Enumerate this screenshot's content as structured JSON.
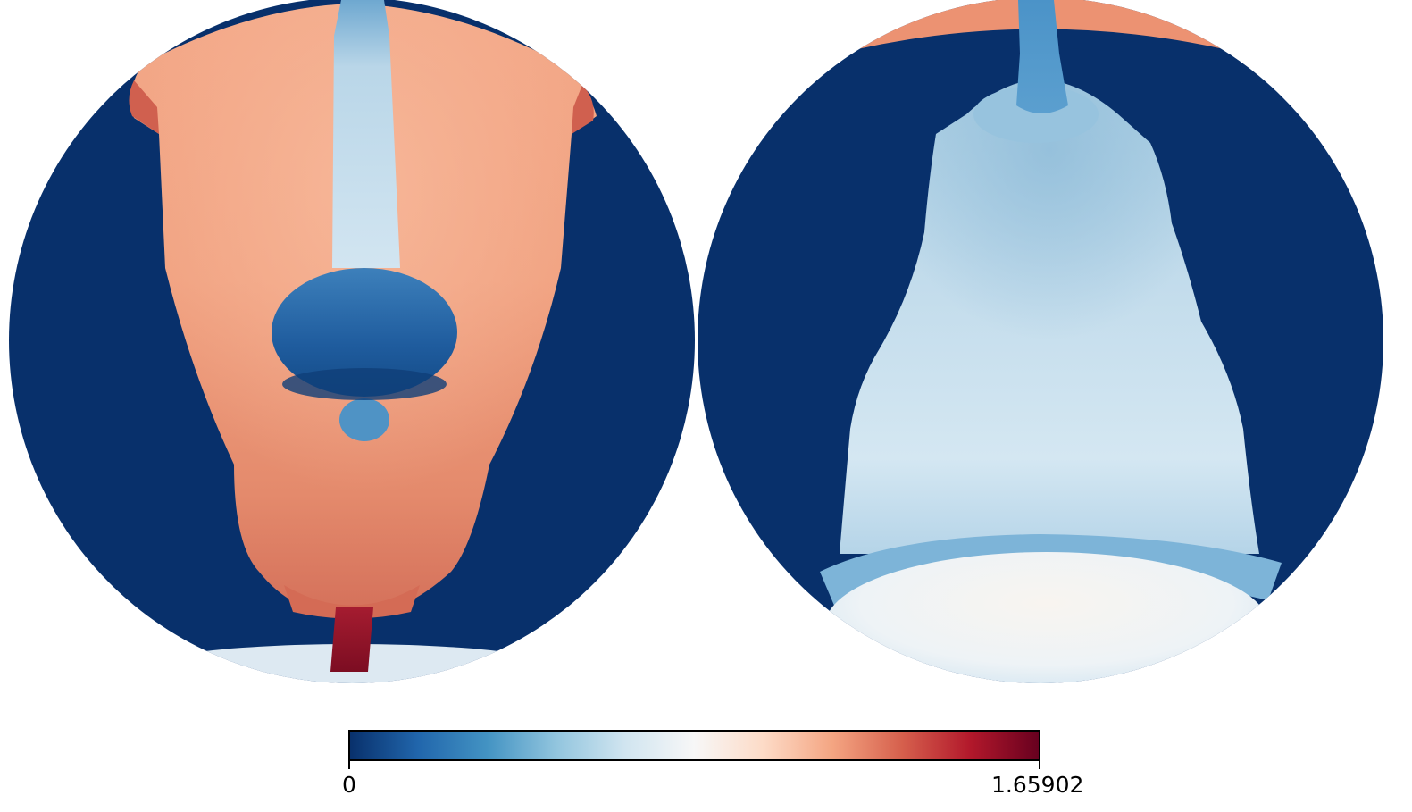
{
  "colorbar": {
    "min_label": "0",
    "max_label": "1.65902",
    "colormap": "RdBu_r",
    "stops": [
      "#08306b",
      "#2166ac",
      "#4393c3",
      "#92c5de",
      "#d1e5f0",
      "#f7f7f7",
      "#fddbc7",
      "#f4a582",
      "#d6604d",
      "#b2182b",
      "#67001f"
    ]
  },
  "panels": [
    {
      "name": "left-hemisphere-view",
      "background_color": "#08306b",
      "body_color": "#f4a582"
    },
    {
      "name": "right-hemisphere-view",
      "background_color": "#08306b",
      "body_color": "#c6dcec"
    }
  ]
}
